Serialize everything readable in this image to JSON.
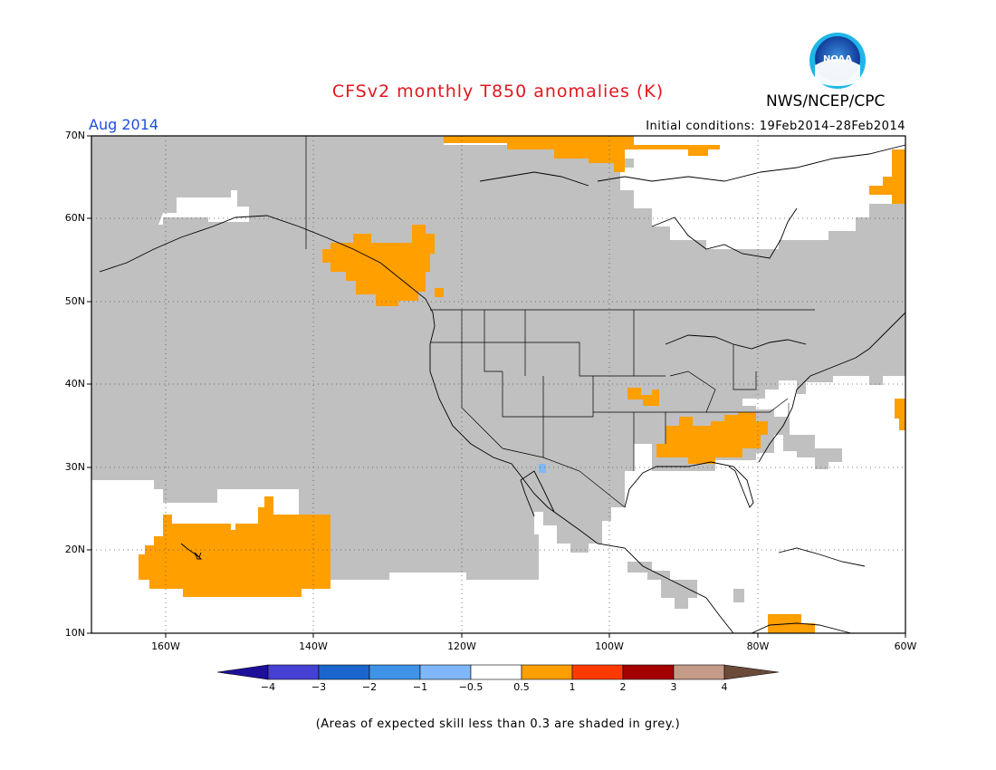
{
  "title": "CFSv2 monthly T850 anomalies (K)",
  "agency": "NWS/NCEP/CPC",
  "logo_text": "NOAA",
  "month": "Aug 2014",
  "initial_conditions": "Initial conditions: 19Feb2014–28Feb2014",
  "footnote": "(Areas of expected skill less than 0.3 are shaded in grey.)",
  "map": {
    "lon_range": [
      -170,
      -60
    ],
    "lat_range": [
      10,
      70
    ],
    "lat_ticks": [
      "70N",
      "60N",
      "50N",
      "40N",
      "30N",
      "20N",
      "10N"
    ],
    "lon_ticks": [
      "160W",
      "140W",
      "120W",
      "100W",
      "80W",
      "60W"
    ],
    "low_skill_color": "#c0c0c0",
    "warm_color": "#ff9f00",
    "cool_color": "#7fb7fa"
  },
  "colorbar": {
    "labels": [
      "−4",
      "−3",
      "−2",
      "−1",
      "−0.5",
      "0.5",
      "1",
      "2",
      "3",
      "4"
    ],
    "colors": [
      "#1e0f9a",
      "#4640d4",
      "#1a66cc",
      "#3f93e8",
      "#7fb7fa",
      "#ffffff",
      "#ff9f00",
      "#ff3a00",
      "#a50000",
      "#c49a88",
      "#6b4a3a"
    ]
  }
}
